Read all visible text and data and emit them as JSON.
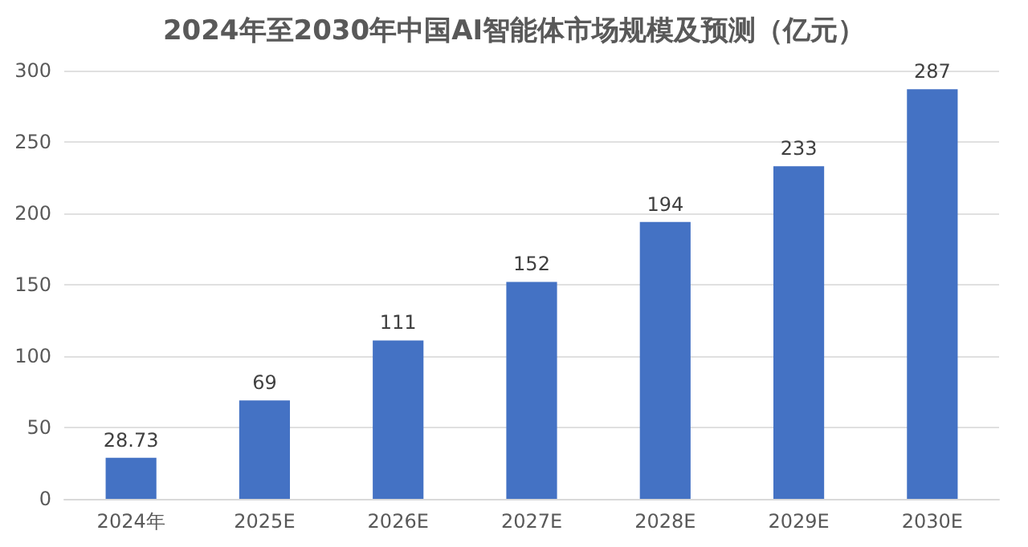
{
  "chart_data": {
    "type": "bar",
    "title": "2024年至2030年中国AI智能体市场规模及预测（亿元）",
    "categories": [
      "2024年",
      "2025E",
      "2026E",
      "2027E",
      "2028E",
      "2029E",
      "2030E"
    ],
    "values": [
      28.73,
      69,
      111,
      152,
      194,
      233,
      287
    ],
    "color": "#4472c4",
    "ylim": [
      0,
      300
    ],
    "yticks": [
      0,
      50,
      100,
      150,
      200,
      250,
      300
    ],
    "grid": "y",
    "data_labels": true
  }
}
